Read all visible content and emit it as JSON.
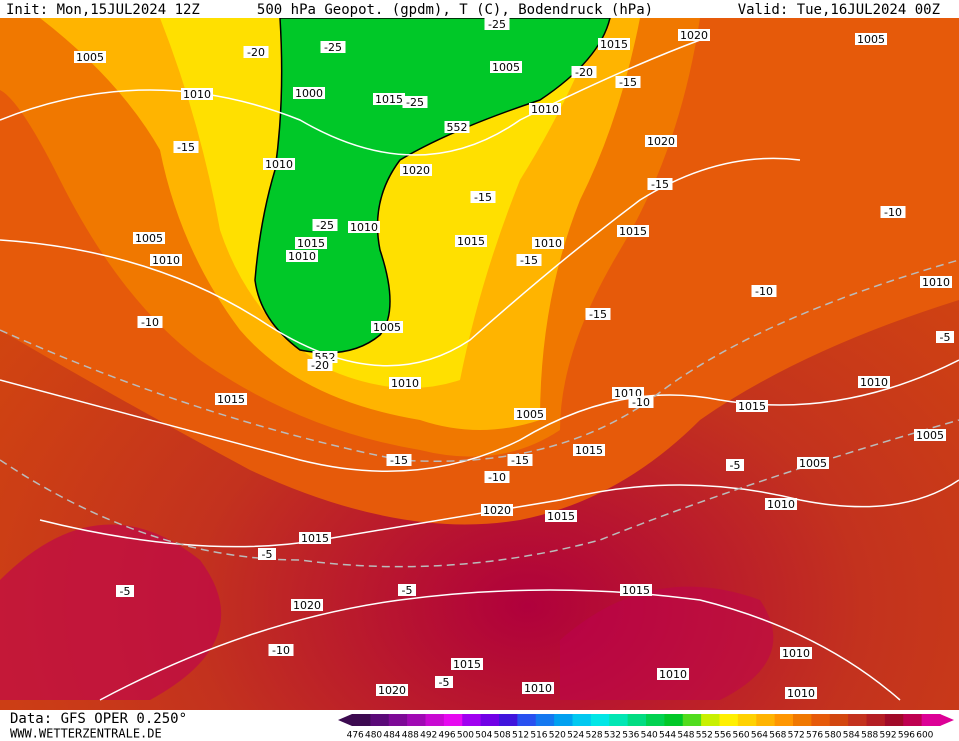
{
  "header": {
    "init": "Init: Mon,15JUL2024 12Z",
    "title": "500 hPa Geopot. (gpdm), T (C), Bodendruck (hPa)",
    "valid": "Valid: Tue,16JUL2024 00Z"
  },
  "footer": {
    "data": "Data: GFS OPER 0.250°",
    "site": "WWW.WETTERZENTRALE.DE"
  },
  "colorbar": {
    "ticks": [
      476,
      480,
      484,
      488,
      492,
      496,
      500,
      504,
      508,
      512,
      516,
      520,
      524,
      528,
      532,
      536,
      540,
      544,
      548,
      552,
      556,
      560,
      564,
      568,
      572,
      576,
      580,
      584,
      588,
      592,
      596,
      600
    ],
    "colors": [
      "#3c0a50",
      "#5a0a78",
      "#7d0a96",
      "#a00ab4",
      "#c80ad2",
      "#e60af0",
      "#a000f0",
      "#7000e6",
      "#4014dc",
      "#2850f0",
      "#1478f0",
      "#00a0f0",
      "#00c8f0",
      "#00e6e6",
      "#00e6b4",
      "#00dc82",
      "#00d250",
      "#00c828",
      "#50dc1e",
      "#c8f000",
      "#fff000",
      "#ffd200",
      "#ffb400",
      "#ff9600",
      "#f07800",
      "#e65a0a",
      "#d2460f",
      "#c3321e",
      "#b41e23",
      "#a00a28",
      "#be0050",
      "#dc0096"
    ]
  },
  "contour_labels": [
    "1005",
    "1010",
    "-20",
    "-25",
    "-25",
    "1015",
    "1020",
    "1005",
    "1005",
    "-20",
    "-15",
    "1000",
    "1015",
    "-25",
    "1010",
    "552",
    "1020",
    "-15",
    "1010",
    "1020",
    "-15",
    "-15",
    "-10",
    "-25",
    "1010",
    "1015",
    "1010",
    "1015",
    "1005",
    "1010",
    "1015",
    "1010",
    "-15",
    "1010",
    "-10",
    "-15",
    "-10",
    "1005",
    "-5",
    "552",
    "-20",
    "1010",
    "1010",
    "1015",
    "1010",
    "-10",
    "1015",
    "1005",
    "1005",
    "1015",
    "-15",
    "-15",
    "-5",
    "1005",
    "-10",
    "1020",
    "1015",
    "1010",
    "1015",
    "-5",
    "-5",
    "-5",
    "1015",
    "1020",
    "-10",
    "1010",
    "1015",
    "1010",
    "-5",
    "1020",
    "1010",
    "1010"
  ]
}
